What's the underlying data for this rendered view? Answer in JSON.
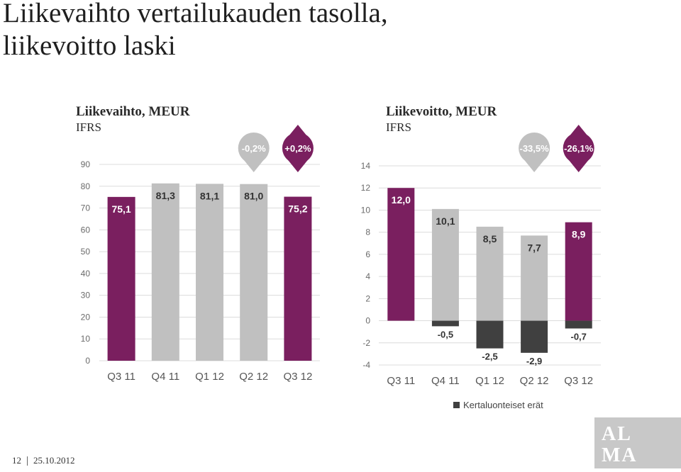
{
  "slide": {
    "title_line1": "Liikevaihto vertailukauden tasolla,",
    "title_line2": "liikevoitto laski",
    "page_number": "12",
    "date": "25.10.2012",
    "logo_text_top": "AL",
    "logo_text_bottom": "MA"
  },
  "colors": {
    "purple": "#7a1f5f",
    "gray": "#c0c0c0",
    "dark": "#404040",
    "grid": "#dcdcdc",
    "axis_text": "#6a6a6a"
  },
  "chart_data": [
    {
      "type": "bar",
      "title": "Liikevaihto, MEUR",
      "subtitle": "IFRS",
      "categories": [
        "Q3 11",
        "Q4 11",
        "Q1 12",
        "Q2 12",
        "Q3 12"
      ],
      "values": [
        75.1,
        81.3,
        81.1,
        81.0,
        75.2
      ],
      "value_labels": [
        "75,1",
        "81,3",
        "81,1",
        "81,0",
        "75,2"
      ],
      "bar_colors": [
        "purple",
        "gray",
        "gray",
        "gray",
        "purple"
      ],
      "yticks": [
        "0",
        "10",
        "20",
        "30",
        "40",
        "50",
        "60",
        "70",
        "80",
        "90"
      ],
      "ylim": [
        0,
        90
      ],
      "grid": true,
      "callouts": [
        {
          "category_index": 3,
          "text": "-0,2%",
          "color": "gray"
        },
        {
          "category_index": 4,
          "text": "+0,2%",
          "color": "purple"
        }
      ]
    },
    {
      "type": "bar",
      "title": "Liikevoitto, MEUR",
      "subtitle": "IFRS",
      "categories": [
        "Q3 11",
        "Q4 11",
        "Q1 12",
        "Q2 12",
        "Q3 12"
      ],
      "values": [
        12.0,
        10.1,
        8.5,
        7.7,
        8.9
      ],
      "value_labels": [
        "12,0",
        "10,1",
        "8,5",
        "7,7",
        "8,9"
      ],
      "bar_colors": [
        "purple",
        "gray",
        "gray",
        "gray",
        "purple"
      ],
      "series_negative": {
        "name": "Kertaluonteiset erät",
        "values": [
          0,
          -0.5,
          -2.5,
          -2.9,
          -0.7
        ],
        "value_labels": [
          "",
          "-0,5",
          "-2,5",
          "-2,9",
          "-0,7"
        ]
      },
      "yticks": [
        "-4",
        "-2",
        "0",
        "2",
        "4",
        "6",
        "8",
        "10",
        "12",
        "14"
      ],
      "ylim": [
        -4,
        14
      ],
      "grid": true,
      "legend": "bottom",
      "callouts": [
        {
          "category_index": 3,
          "text": "-33,5%",
          "color": "gray"
        },
        {
          "category_index": 4,
          "text": "-26,1%",
          "color": "purple"
        }
      ]
    }
  ]
}
